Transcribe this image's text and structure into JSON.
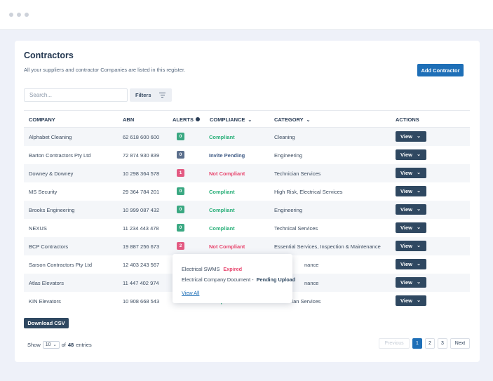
{
  "colors": {
    "primary": "#1e6fb7",
    "navy": "#2f4861",
    "green": "#2bb07a",
    "red": "#e8466e",
    "badge_green": "#3aa882",
    "badge_blue": "#5b6f8c",
    "badge_red": "#e35a82"
  },
  "page": {
    "title": "Contractors",
    "subtitle": "All your suppliers and contractor Companies are listed in this register.",
    "add_button": "Add Contractor"
  },
  "toolbar": {
    "search_placeholder": "Search...",
    "filters_label": "Filters",
    "filters_icon": "filter-icon"
  },
  "table": {
    "headers": {
      "company": "COMPANY",
      "abn": "ABN",
      "alerts": "ALERTS",
      "compliance": "COMPLIANCE",
      "category": "CATEGORY",
      "actions": "ACTIONS"
    },
    "rows": [
      {
        "company": "Alphabet Cleaning",
        "abn": "62 618 600 600",
        "alerts": "0",
        "compliance": "Compliant",
        "category": "Cleaning",
        "action": "View"
      },
      {
        "company": "Barton Contractors Pty Ltd",
        "abn": "72 874 930 839",
        "alerts": "0",
        "compliance": "Invite Pending",
        "category": "Engineering",
        "action": "View"
      },
      {
        "company": "Downey & Downey",
        "abn": "10 298 364 578",
        "alerts": "1",
        "compliance": "Not Compliant",
        "category": "Technician Services",
        "action": "View"
      },
      {
        "company": "MS Security",
        "abn": "29 364 784 201",
        "alerts": "0",
        "compliance": "Compliant",
        "category": "High Risk, Electrical Services",
        "action": "View"
      },
      {
        "company": "Brooks Engineering",
        "abn": "10 999 087 432",
        "alerts": "0",
        "compliance": "Compliant",
        "category": "Engineering",
        "action": "View"
      },
      {
        "company": "NEXUS",
        "abn": "11 234 443 478",
        "alerts": "0",
        "compliance": "Compliant",
        "category": "Technical Services",
        "action": "View"
      },
      {
        "company": "BCP Contractors",
        "abn": "19 887 256 673",
        "alerts": "2",
        "compliance": "Not Compliant",
        "category": "Essential Services, Inspection & Maintenance",
        "action": "View"
      },
      {
        "company": "Sarson Contractors Pty Ltd",
        "abn": "12 403 243 567",
        "alerts": "",
        "compliance": "",
        "category": "nance",
        "action": "View"
      },
      {
        "company": "Atlas Elevators",
        "abn": "11 447 402 974",
        "alerts": "",
        "compliance": "",
        "category": "nance",
        "action": "View"
      },
      {
        "company": "KIN Elevators",
        "abn": "10 908 668 543",
        "alerts": "",
        "compliance": "Compliant",
        "category": "Technician Services",
        "action": "View"
      }
    ]
  },
  "popover": {
    "line1_text": "Electrical SWMS",
    "line1_status": "Expired",
    "line2_text": "Electrical Company Document -",
    "line2_status": "Pending Upload",
    "link": "View All"
  },
  "footer": {
    "download_csv": "Download CSV",
    "show_label": "Show",
    "page_size": "10",
    "of_label": "of",
    "total": "48",
    "entries_label": "entries"
  },
  "pagination": {
    "previous": "Previous",
    "pages": [
      "1",
      "2",
      "3"
    ],
    "next": "Next",
    "current": "1"
  }
}
